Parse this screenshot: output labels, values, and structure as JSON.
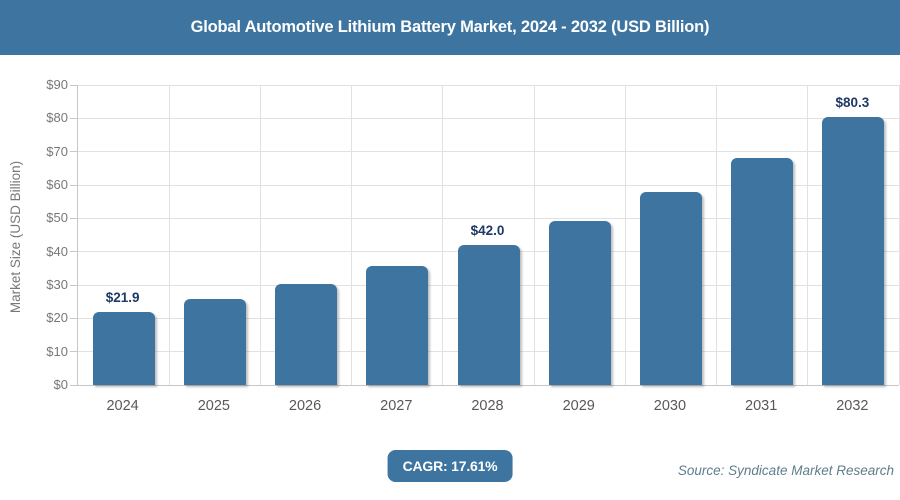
{
  "title": "Global Automotive Lithium Battery Market, 2024 - 2032 (USD Billion)",
  "cagr_label": "CAGR: 17.61%",
  "source": "Source: Syndicate Market Research",
  "colors": {
    "accent": "#3d74a0",
    "bar": "#3d74a0",
    "data_label": "#1f3864",
    "gridline": "#e1e1e1",
    "axis_line": "#c6c6c6",
    "tick_label": "#787878",
    "x_label": "#595959",
    "source_text": "#5e7d8d"
  },
  "chart_data": {
    "type": "bar",
    "title": "Global Automotive Lithium Battery Market, 2024 - 2032 (USD Billion)",
    "categories": [
      "2024",
      "2025",
      "2026",
      "2027",
      "2028",
      "2029",
      "2030",
      "2031",
      "2032"
    ],
    "values": [
      21.9,
      25.8,
      30.3,
      35.6,
      42.0,
      49.3,
      58.0,
      68.2,
      80.3
    ],
    "point_labels": [
      "$21.9",
      null,
      null,
      null,
      "$42.0",
      null,
      null,
      null,
      "$80.3"
    ],
    "xlabel": "",
    "ylabel": "Market Size (USD Billion)",
    "ylim": [
      0,
      90
    ],
    "y_ticks": [
      0,
      10,
      20,
      30,
      40,
      50,
      60,
      70,
      80,
      90
    ],
    "y_tick_labels": [
      "$0",
      "$10",
      "$20",
      "$30",
      "$40",
      "$50",
      "$60",
      "$70",
      "$80",
      "$90"
    ],
    "grid": true,
    "legend": false,
    "annotations": [
      "CAGR: 17.61%",
      "Source: Syndicate Market Research"
    ]
  }
}
